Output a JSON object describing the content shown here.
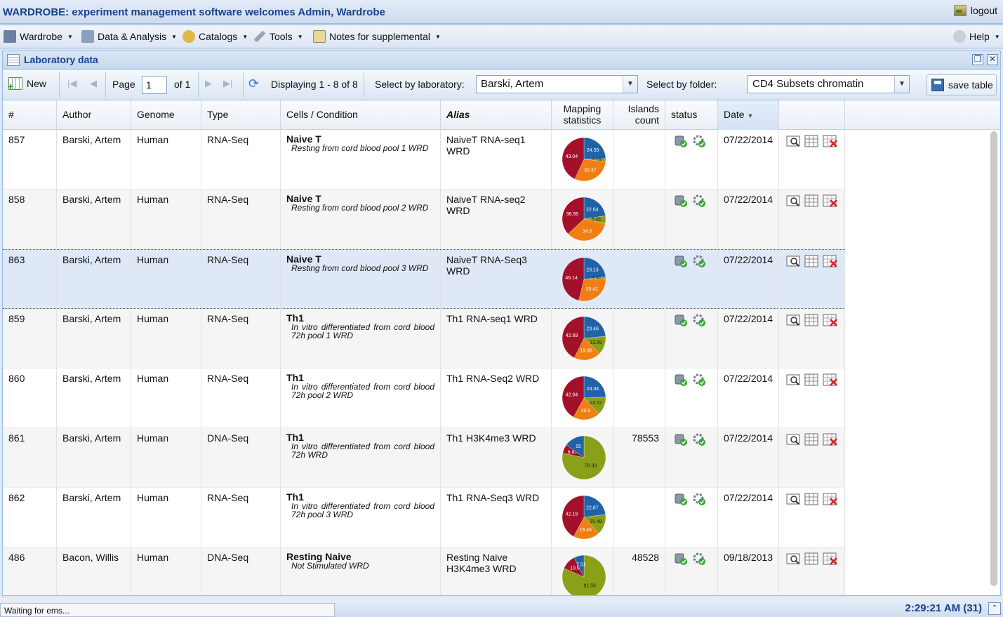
{
  "app": {
    "title": "WARDROBE: experiment management software welcomes Admin, Wardrobe",
    "logout_label": "logout"
  },
  "menu": {
    "items": [
      "Wardrobe",
      "Data & Analysis",
      "Catalogs",
      "Tools",
      "Notes for supplemental"
    ],
    "help": "Help"
  },
  "panel": {
    "title": "Laboratory data"
  },
  "toolbar": {
    "new_label": "New",
    "page_label": "Page",
    "page_value": "1",
    "of_label": "of 1",
    "displaying": "Displaying 1 - 8 of 8",
    "lab_label": "Select by laboratory:",
    "lab_value": "Barski, Artem",
    "folder_label": "Select by folder:",
    "folder_value": "CD4 Subsets chromatin",
    "save_label": "save table"
  },
  "columns": {
    "num": "#",
    "author": "Author",
    "genome": "Genome",
    "type": "Type",
    "cells": "Cells / Condition",
    "alias": "Alias",
    "mapping": "Mapping statistics",
    "islands": "Islands count",
    "status": "status",
    "date": "Date"
  },
  "colors": {
    "blue": "#1f62a8",
    "green": "#8aa018",
    "orange": "#f07e12",
    "red": "#a3102a",
    "header": "#15428b"
  },
  "rows": [
    {
      "id": "857",
      "author": "Barski, Artem",
      "genome": "Human",
      "type": "RNA-Seq",
      "cell": "Naive T",
      "condition": "Resting from cord blood pool 1 WRD",
      "alias": "NaiveT RNA-seq1 WRD",
      "islands": "",
      "date": "07/22/2014",
      "pie": [
        {
          "v": 24.39,
          "c": "blue"
        },
        {
          "v": 2.19,
          "c": "green"
        },
        {
          "v": 30.37,
          "c": "orange"
        },
        {
          "v": 43.04,
          "c": "red"
        }
      ]
    },
    {
      "id": "858",
      "author": "Barski, Artem",
      "genome": "Human",
      "type": "RNA-Seq",
      "cell": "Naive T",
      "condition": "Resting from cord blood pool 2 WRD",
      "alias": "NaiveT RNA-seq2 WRD",
      "islands": "",
      "date": "07/22/2014",
      "pie": [
        {
          "v": 22.64,
          "c": "blue"
        },
        {
          "v": 5.81,
          "c": "green"
        },
        {
          "v": 34.6,
          "c": "orange"
        },
        {
          "v": 36.95,
          "c": "red"
        }
      ]
    },
    {
      "id": "863",
      "author": "Barski, Artem",
      "genome": "Human",
      "type": "RNA-Seq",
      "cell": "Naive T",
      "condition": "Resting from cord blood pool 3 WRD",
      "alias": "NaiveT RNA-Seq3 WRD",
      "islands": "",
      "date": "07/22/2014",
      "pie": [
        {
          "v": 23.13,
          "c": "blue"
        },
        {
          "v": 1.31,
          "c": "green"
        },
        {
          "v": 29.41,
          "c": "orange"
        },
        {
          "v": 46.14,
          "c": "red"
        }
      ]
    },
    {
      "id": "859",
      "author": "Barski, Artem",
      "genome": "Human",
      "type": "RNA-Seq",
      "cell": "Th1",
      "condition": "In vitro differentiated from cord blood 72h pool 1 WRD",
      "alias": "Th1 RNA-seq1 WRD",
      "islands": "",
      "date": "07/22/2014",
      "pie": [
        {
          "v": 23.46,
          "c": "blue"
        },
        {
          "v": 13.89,
          "c": "green"
        },
        {
          "v": 19.96,
          "c": "orange"
        },
        {
          "v": 42.69,
          "c": "red"
        }
      ]
    },
    {
      "id": "860",
      "author": "Barski, Artem",
      "genome": "Human",
      "type": "RNA-Seq",
      "cell": "Th1",
      "condition": "In vitro differentiated from cord blood 72h pool 2 WRD",
      "alias": "Th1 RNA-Seq2 WRD",
      "islands": "",
      "date": "07/22/2014",
      "pie": [
        {
          "v": 24.34,
          "c": "blue"
        },
        {
          "v": 13.72,
          "c": "green"
        },
        {
          "v": 19.9,
          "c": "orange"
        },
        {
          "v": 42.04,
          "c": "red"
        }
      ]
    },
    {
      "id": "861",
      "author": "Barski, Artem",
      "genome": "Human",
      "type": "DNA-Seq",
      "cell": "Th1",
      "condition": "In vitro differentiated from cord blood 72h WRD",
      "alias": "Th1 H3K4me3 WRD",
      "islands": "78553",
      "date": "07/22/2014",
      "pie": [
        {
          "v": 78.33,
          "c": "green"
        },
        {
          "v": 6.67,
          "c": "red"
        },
        {
          "v": 15,
          "c": "blue"
        }
      ]
    },
    {
      "id": "862",
      "author": "Barski, Artem",
      "genome": "Human",
      "type": "RNA-Seq",
      "cell": "Th1",
      "condition": "In vitro differentiated from cord blood 72h pool 3 WRD",
      "alias": "Th1 RNA-Seq3 WRD",
      "islands": "",
      "date": "07/22/2014",
      "pie": [
        {
          "v": 22.87,
          "c": "blue"
        },
        {
          "v": 15.48,
          "c": "green"
        },
        {
          "v": 19.46,
          "c": "orange"
        },
        {
          "v": 42.19,
          "c": "red"
        }
      ]
    },
    {
      "id": "486",
      "author": "Bacon, Willis",
      "genome": "Human",
      "type": "DNA-Seq",
      "cell": "Resting Naive",
      "condition": "Not Stimulated WRD",
      "alias": "Resting Naive H3K4me3 WRD",
      "islands": "48528",
      "date": "09/18/2013",
      "pie": [
        {
          "v": 81.59,
          "c": "green"
        },
        {
          "v": 10.9,
          "c": "red"
        },
        {
          "v": 7.51,
          "c": "blue"
        }
      ]
    }
  ],
  "status": {
    "message": "Waiting for ems...",
    "clock": "2:29:21 AM (31)"
  }
}
